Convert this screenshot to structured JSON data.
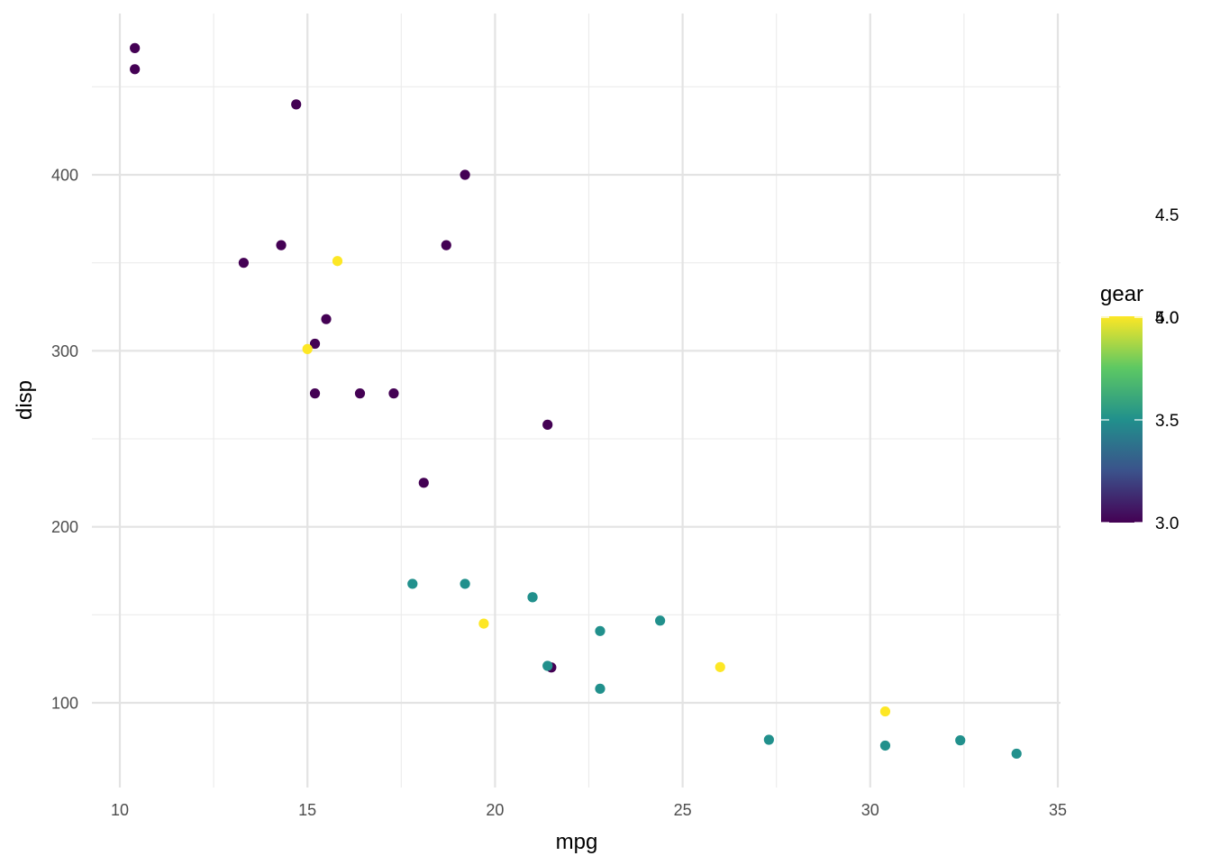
{
  "chart_data": {
    "type": "scatter",
    "title": "",
    "xlabel": "mpg",
    "ylabel": "disp",
    "xlim": [
      9.2,
      35.1
    ],
    "ylim": [
      52,
      481
    ],
    "x_major_ticks": [
      10,
      15,
      20,
      25,
      30,
      35
    ],
    "x_tick_labels": [
      "10",
      "15",
      "20",
      "25",
      "30",
      "35"
    ],
    "x_minor_ticks": [
      12.5,
      17.5,
      22.5,
      27.5,
      32.5
    ],
    "y_major_ticks": [
      100,
      200,
      300,
      400
    ],
    "y_tick_labels": [
      "100",
      "200",
      "300",
      "400"
    ],
    "y_minor_ticks": [
      150,
      250,
      350,
      450
    ],
    "grid": true,
    "color_by": "gear",
    "colorbar": {
      "title": "gear",
      "min": 3.0,
      "max": 5.0,
      "ticks": [
        3.0,
        3.5,
        4.0,
        4.5,
        5.0
      ],
      "tick_labels": [
        "3.0",
        "3.5",
        "4.0",
        "4.5",
        "5.0"
      ],
      "colors": [
        "#440154",
        "#3b528b",
        "#21908c",
        "#5dc863",
        "#fde725"
      ]
    },
    "legend_position": "right",
    "points": [
      {
        "mpg": 21.0,
        "disp": 160,
        "gear": 4
      },
      {
        "mpg": 21.0,
        "disp": 160,
        "gear": 4
      },
      {
        "mpg": 22.8,
        "disp": 108,
        "gear": 4
      },
      {
        "mpg": 21.4,
        "disp": 258,
        "gear": 3
      },
      {
        "mpg": 18.7,
        "disp": 360,
        "gear": 3
      },
      {
        "mpg": 18.1,
        "disp": 225,
        "gear": 3
      },
      {
        "mpg": 14.3,
        "disp": 360,
        "gear": 3
      },
      {
        "mpg": 24.4,
        "disp": 146.7,
        "gear": 4
      },
      {
        "mpg": 22.8,
        "disp": 140.8,
        "gear": 4
      },
      {
        "mpg": 19.2,
        "disp": 167.6,
        "gear": 4
      },
      {
        "mpg": 17.8,
        "disp": 167.6,
        "gear": 4
      },
      {
        "mpg": 16.4,
        "disp": 275.8,
        "gear": 3
      },
      {
        "mpg": 17.3,
        "disp": 275.8,
        "gear": 3
      },
      {
        "mpg": 15.2,
        "disp": 275.8,
        "gear": 3
      },
      {
        "mpg": 10.4,
        "disp": 472,
        "gear": 3
      },
      {
        "mpg": 10.4,
        "disp": 460,
        "gear": 3
      },
      {
        "mpg": 14.7,
        "disp": 440,
        "gear": 3
      },
      {
        "mpg": 32.4,
        "disp": 78.7,
        "gear": 4
      },
      {
        "mpg": 30.4,
        "disp": 75.7,
        "gear": 4
      },
      {
        "mpg": 33.9,
        "disp": 71.1,
        "gear": 4
      },
      {
        "mpg": 21.5,
        "disp": 120.1,
        "gear": 3
      },
      {
        "mpg": 15.5,
        "disp": 318,
        "gear": 3
      },
      {
        "mpg": 15.2,
        "disp": 304,
        "gear": 3
      },
      {
        "mpg": 13.3,
        "disp": 350,
        "gear": 3
      },
      {
        "mpg": 19.2,
        "disp": 400,
        "gear": 3
      },
      {
        "mpg": 27.3,
        "disp": 79,
        "gear": 4
      },
      {
        "mpg": 26.0,
        "disp": 120.3,
        "gear": 5
      },
      {
        "mpg": 30.4,
        "disp": 95.1,
        "gear": 5
      },
      {
        "mpg": 15.8,
        "disp": 351,
        "gear": 5
      },
      {
        "mpg": 19.7,
        "disp": 145,
        "gear": 5
      },
      {
        "mpg": 15.0,
        "disp": 301,
        "gear": 5
      },
      {
        "mpg": 21.4,
        "disp": 121,
        "gear": 4
      }
    ]
  }
}
